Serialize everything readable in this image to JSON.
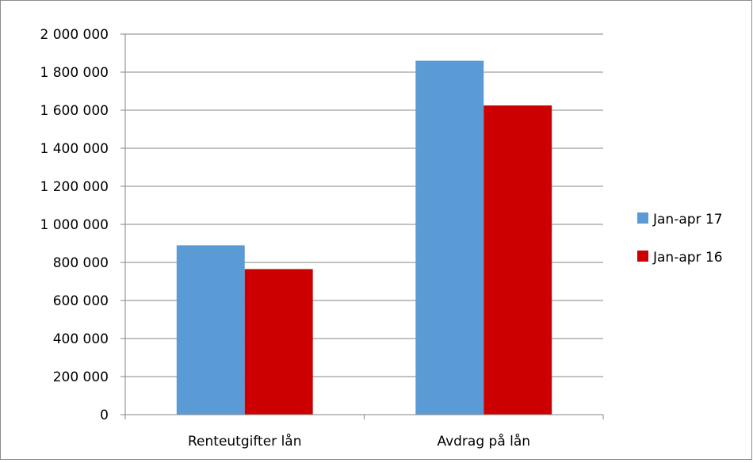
{
  "chart_data": {
    "type": "bar",
    "title": "",
    "xlabel": "",
    "ylabel": "",
    "categories": [
      "Renteutgifter lån",
      "Avdrag på lån"
    ],
    "series": [
      {
        "name": "Jan-apr 17",
        "color": "#5b9bd5",
        "values": [
          890000,
          1860000
        ]
      },
      {
        "name": "Jan-apr 16",
        "color": "#cc0000",
        "values": [
          765000,
          1625000
        ]
      }
    ],
    "ylim": [
      0,
      2000000
    ],
    "ytick_labels": [
      "0",
      "200 000",
      "400 000",
      "600 000",
      "800 000",
      "1 000 000",
      "1 200 000",
      "1 400 000",
      "1 600 000",
      "1 800 000",
      "2 000 000"
    ],
    "grid": true,
    "legend_position": "right",
    "gridline_color": "#868686"
  }
}
